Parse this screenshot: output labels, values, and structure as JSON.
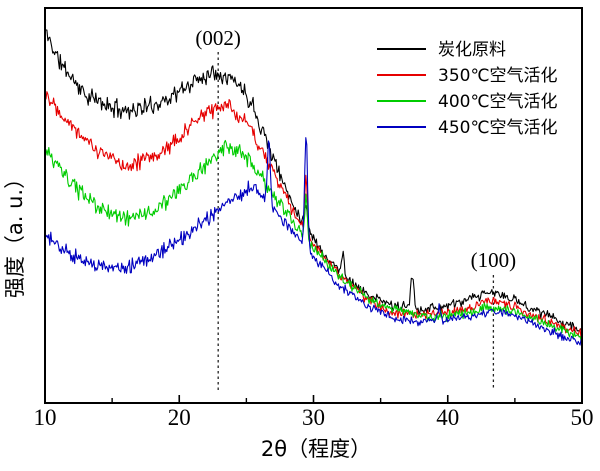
{
  "figure": {
    "background": "#ffffff",
    "frame_color": "#000000"
  },
  "chart_data": {
    "type": "line",
    "title": "",
    "xlabel": "2θ（程度）",
    "ylabel": "强度（a. u.）",
    "xlim": [
      10,
      50
    ],
    "x_major_ticks": [
      10,
      20,
      30,
      40,
      50
    ],
    "x_minor_ticks": [
      15,
      25,
      35,
      45
    ],
    "y_axis_note": "arbitrary intensity units (curves vertically offset, no y ticks shown)",
    "grid": false,
    "legend_position": "upper right, no border",
    "legend": [
      {
        "label": "炭化原料",
        "color": "#000000"
      },
      {
        "label": "350℃空气活化",
        "color": "#e60000"
      },
      {
        "label": "400℃空气活化",
        "color": "#00cc00"
      },
      {
        "label": "450℃空气活化",
        "color": "#0000c0"
      }
    ],
    "annotations": [
      {
        "text": "(002)",
        "x_deg": 22.9,
        "label_au": 358,
        "guide_top_au": 351,
        "guide_bottom_au": 13
      },
      {
        "text": "(100)",
        "x_deg": 43.4,
        "label_au": 136,
        "guide_top_au": 128,
        "guide_bottom_au": 13
      }
    ],
    "series": [
      {
        "name": "炭化原料",
        "color": "#000000",
        "seed": 11,
        "noise": [
          11,
          6
        ],
        "anchors": [
          [
            10,
            373
          ],
          [
            11,
            343
          ],
          [
            13,
            308
          ],
          [
            15,
            295
          ],
          [
            16.5,
            293
          ],
          [
            18,
            297
          ],
          [
            20,
            311
          ],
          [
            21.5,
            325
          ],
          [
            22.7,
            332
          ],
          [
            23.5,
            328
          ],
          [
            24.5,
            318
          ],
          [
            25.5,
            298
          ],
          [
            26.5,
            263
          ],
          [
            27.5,
            228
          ],
          [
            28.5,
            198
          ],
          [
            29.5,
            175
          ],
          [
            31,
            145
          ],
          [
            32.5,
            125
          ],
          [
            34,
            108
          ],
          [
            36,
            97
          ],
          [
            38,
            94
          ],
          [
            40,
            97
          ],
          [
            41.5,
            103
          ],
          [
            43.3,
            111
          ],
          [
            45,
            103
          ],
          [
            47,
            90
          ],
          [
            49,
            78
          ],
          [
            50,
            73
          ]
        ],
        "peaks": [
          {
            "x": 29.45,
            "amp": 25,
            "w": 0.1
          },
          {
            "x": 32.2,
            "amp": 20,
            "w": 0.1
          },
          {
            "x": 37.35,
            "amp": 32,
            "w": 0.12
          }
        ]
      },
      {
        "name": "350℃空气活化",
        "color": "#e60000",
        "seed": 22,
        "noise": [
          10,
          6
        ],
        "anchors": [
          [
            10,
            311
          ],
          [
            12,
            278
          ],
          [
            14,
            251
          ],
          [
            16,
            238
          ],
          [
            18,
            245
          ],
          [
            20,
            265
          ],
          [
            21.5,
            285
          ],
          [
            23,
            298
          ],
          [
            24,
            293
          ],
          [
            25,
            281
          ],
          [
            26,
            258
          ],
          [
            27,
            231
          ],
          [
            28.5,
            191
          ],
          [
            30,
            158
          ],
          [
            32,
            127
          ],
          [
            34,
            104
          ],
          [
            36,
            90
          ],
          [
            38,
            87
          ],
          [
            40,
            90
          ],
          [
            41.5,
            95
          ],
          [
            43.3,
            102
          ],
          [
            45,
            96
          ],
          [
            47,
            85
          ],
          [
            49,
            74
          ],
          [
            50,
            69
          ]
        ],
        "peaks": [
          {
            "x": 29.45,
            "amp": 55,
            "w": 0.1
          }
        ]
      },
      {
        "name": "400℃空气活化",
        "color": "#00cc00",
        "seed": 33,
        "noise": [
          10,
          6
        ],
        "anchors": [
          [
            10,
            253
          ],
          [
            12,
            218
          ],
          [
            14,
            195
          ],
          [
            16,
            185
          ],
          [
            18,
            191
          ],
          [
            20,
            211
          ],
          [
            21.5,
            233
          ],
          [
            23.3,
            254
          ],
          [
            24.5,
            250
          ],
          [
            25.5,
            238
          ],
          [
            26.5,
            217
          ],
          [
            27.5,
            199
          ],
          [
            29,
            171
          ],
          [
            31,
            140
          ],
          [
            33,
            114
          ],
          [
            35,
            98
          ],
          [
            37,
            90
          ],
          [
            39,
            86
          ],
          [
            41,
            89
          ],
          [
            43.3,
            96
          ],
          [
            45,
            91
          ],
          [
            47,
            81
          ],
          [
            49,
            70
          ],
          [
            50,
            66
          ]
        ],
        "peaks": [
          {
            "x": 29.45,
            "amp": 40,
            "w": 0.1
          }
        ]
      },
      {
        "name": "450℃空气活化",
        "color": "#0000c0",
        "seed": 44,
        "noise": [
          9,
          5
        ],
        "anchors": [
          [
            10,
            168
          ],
          [
            12,
            147
          ],
          [
            14,
            137
          ],
          [
            15.5,
            134
          ],
          [
            17,
            140
          ],
          [
            19,
            153
          ],
          [
            21,
            172
          ],
          [
            23,
            194
          ],
          [
            24.5,
            209
          ],
          [
            25.4,
            215
          ],
          [
            26.2,
            209
          ],
          [
            27,
            195
          ],
          [
            28,
            179
          ],
          [
            30,
            146
          ],
          [
            32,
            117
          ],
          [
            34,
            97
          ],
          [
            36,
            85
          ],
          [
            38,
            81
          ],
          [
            40,
            83
          ],
          [
            41.5,
            86
          ],
          [
            43.3,
            92
          ],
          [
            45,
            87
          ],
          [
            47,
            76
          ],
          [
            49,
            64
          ],
          [
            50,
            60
          ]
        ],
        "peaks": [
          {
            "x": 26.68,
            "amp": 66,
            "w": 0.1
          },
          {
            "x": 29.45,
            "amp": 114,
            "w": 0.11
          },
          {
            "x": 39.35,
            "amp": 14,
            "w": 0.1
          }
        ]
      }
    ]
  }
}
